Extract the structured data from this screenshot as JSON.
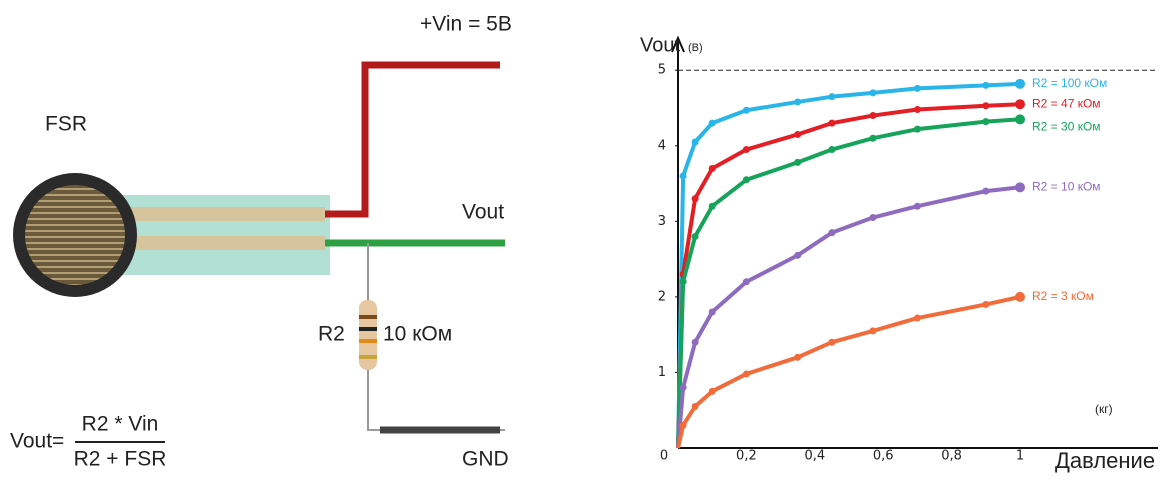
{
  "diagram": {
    "sensor": "FSR",
    "vin": "+Vin = 5В",
    "vout": "Vout",
    "r2": "R2",
    "r2_value": "10 кОм",
    "gnd": "GND",
    "formula": {
      "left": "Vout=",
      "numerator": "R2 * Vin",
      "denominator": "R2 + FSR"
    }
  },
  "chart_data": {
    "type": "line",
    "y_label": "Vout",
    "y_unit": "(В)",
    "x_label": "Давление",
    "x_unit": "(кг)",
    "x": [
      0.015,
      0.05,
      0.1,
      0.2,
      0.35,
      0.45,
      0.57,
      0.7,
      0.9,
      1.0
    ],
    "series": [
      {
        "name": "R2 = 100 кОм",
        "color": "#29b5e8",
        "values": [
          3.6,
          4.05,
          4.3,
          4.47,
          4.58,
          4.65,
          4.7,
          4.76,
          4.8,
          4.82
        ]
      },
      {
        "name": "R2 = 47 кОм",
        "color": "#e31e24",
        "values": [
          2.3,
          3.3,
          3.7,
          3.95,
          4.15,
          4.3,
          4.4,
          4.48,
          4.53,
          4.55
        ]
      },
      {
        "name": "R2 = 30 кОм",
        "color": "#16a35a",
        "values": [
          2.2,
          2.8,
          3.2,
          3.55,
          3.78,
          3.95,
          4.1,
          4.22,
          4.32,
          4.35
        ]
      },
      {
        "name": "R2 = 10 кОм",
        "color": "#8e6bbf",
        "values": [
          0.8,
          1.4,
          1.8,
          2.2,
          2.55,
          2.85,
          3.05,
          3.2,
          3.4,
          3.45
        ]
      },
      {
        "name": "R2 = 3 кОм",
        "color": "#f26b3a",
        "values": [
          0.3,
          0.55,
          0.75,
          0.98,
          1.2,
          1.4,
          1.55,
          1.72,
          1.9,
          2.0
        ]
      }
    ],
    "reference_line": 5,
    "xlim": [
      0,
      1.4
    ],
    "ylim": [
      0,
      5.4
    ],
    "xticks": [
      0,
      {
        "value": 0.2,
        "label": "0,2"
      },
      {
        "value": 0.4,
        "label": "0,4"
      },
      {
        "value": 0.6,
        "label": "0,6"
      },
      {
        "value": 0.8,
        "label": "0,8"
      },
      1
    ],
    "yticks": [
      1,
      2,
      3,
      4,
      5
    ]
  }
}
